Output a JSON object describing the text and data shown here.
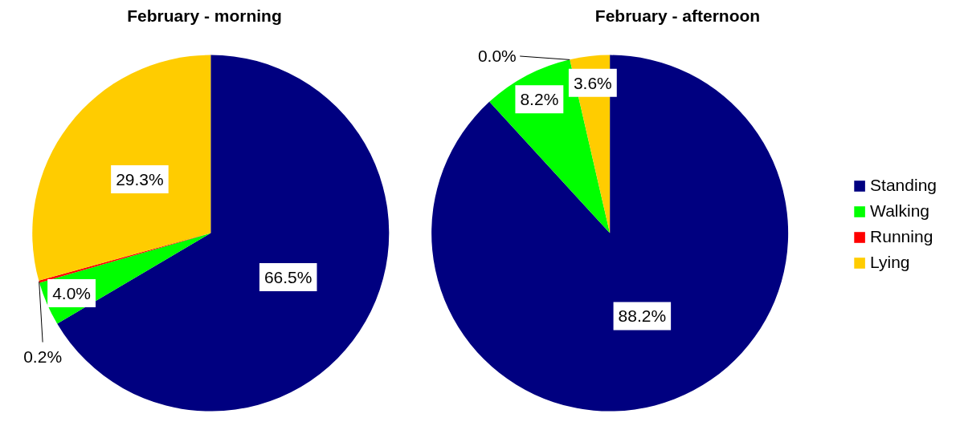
{
  "chart_data": [
    {
      "type": "pie",
      "title": "February - morning",
      "categories": [
        null,
        null,
        null,
        null
      ],
      "values": [
        66.5,
        4.0,
        0.2,
        29.3
      ],
      "colors": [
        "#000080",
        "#00ff00",
        "#ff0000",
        "#ffcc00"
      ],
      "value_labels": [
        "66.5%",
        "4.0%",
        "0.2%",
        "29.3%"
      ]
    },
    {
      "type": "pie",
      "title": "February - afternoon",
      "categories": [
        "Standing",
        "Walking",
        "Running",
        "Lying"
      ],
      "values": [
        88.2,
        8.2,
        0.0,
        3.6
      ],
      "colors": [
        "#000080",
        "#00ff00",
        "#ff0000",
        "#ffcc00"
      ],
      "value_labels": [
        "88.2%",
        "8.2%",
        "0.0%",
        "3.6%"
      ],
      "legend": "right"
    }
  ]
}
